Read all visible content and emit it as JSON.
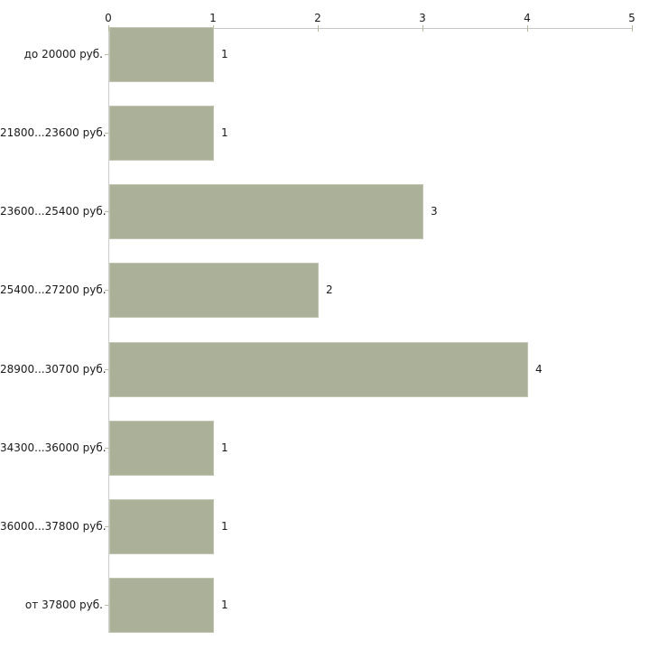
{
  "chart_data": {
    "type": "bar",
    "orientation": "horizontal",
    "title": "",
    "categories": [
      "до 20000 руб.",
      "21800...23600 руб.",
      "23600...25400 руб.",
      "25400...27200 руб.",
      "28900...30700 руб.",
      "34300...36000 руб.",
      "36000...37800 руб.",
      "от 37800 руб."
    ],
    "values": [
      1,
      1,
      3,
      2,
      4,
      1,
      1,
      1
    ],
    "value_labels": [
      "1",
      "1",
      "3",
      "2",
      "4",
      "1",
      "1",
      "1"
    ],
    "x_axis": {
      "position": "top",
      "range": [
        0,
        5
      ],
      "ticks": [
        "0",
        "1",
        "2",
        "3",
        "4",
        "5"
      ]
    },
    "legend": "none",
    "grid": "off",
    "colors": {
      "bar_fill": "#abb098",
      "bar_border": "#c2c6b2",
      "axis_line": "#c6c6c4",
      "tick_mark": "#b5b99e",
      "text": "#1a1a1a",
      "background": "#ffffff"
    }
  }
}
